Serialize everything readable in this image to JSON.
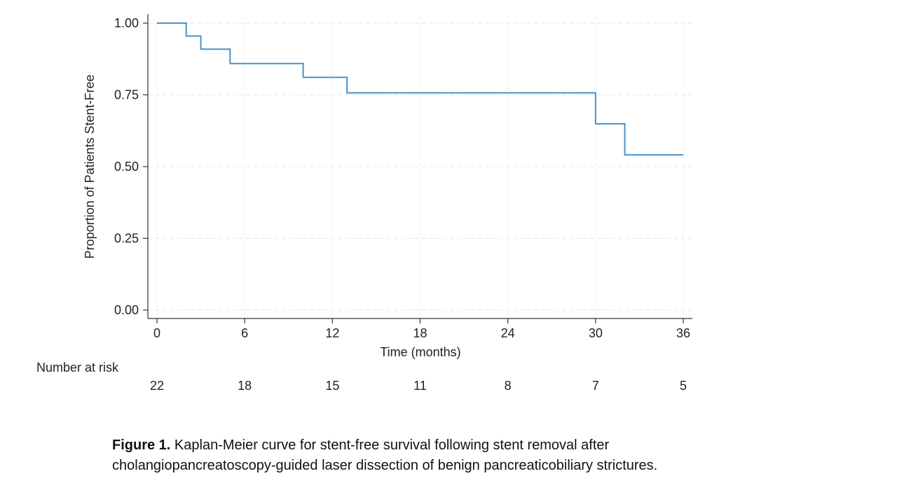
{
  "chart_data": {
    "type": "line",
    "step": true,
    "title": "",
    "xlabel": "Time (months)",
    "ylabel": "Proportion of Patients Stent-Free",
    "xlim": [
      0,
      36
    ],
    "ylim": [
      0,
      1
    ],
    "x_ticks": [
      0,
      6,
      12,
      18,
      24,
      30,
      36
    ],
    "y_ticks": [
      0.0,
      0.25,
      0.5,
      0.75,
      1.0
    ],
    "y_tick_labels": [
      "0.00",
      "0.25",
      "0.50",
      "0.75",
      "1.00"
    ],
    "grid": true,
    "series": [
      {
        "color": "#4a90c4",
        "points": [
          {
            "x": 0,
            "y": 1.0
          },
          {
            "x": 2,
            "y": 0.955
          },
          {
            "x": 3,
            "y": 0.909
          },
          {
            "x": 5,
            "y": 0.859
          },
          {
            "x": 10,
            "y": 0.811
          },
          {
            "x": 13,
            "y": 0.757
          },
          {
            "x": 30,
            "y": 0.649
          },
          {
            "x": 32,
            "y": 0.541
          },
          {
            "x": 36,
            "y": 0.541
          }
        ]
      }
    ],
    "risk_table": {
      "title": "Number at risk",
      "times": [
        0,
        6,
        12,
        18,
        24,
        30,
        36
      ],
      "counts": [
        22,
        18,
        15,
        11,
        8,
        7,
        5
      ]
    }
  },
  "caption": {
    "label": "Figure 1.",
    "text": " Kaplan-Meier curve for stent-free survival following stent removal after cholangiopancreatoscopy-guided laser dissection of benign pancreaticobiliary strictures."
  }
}
